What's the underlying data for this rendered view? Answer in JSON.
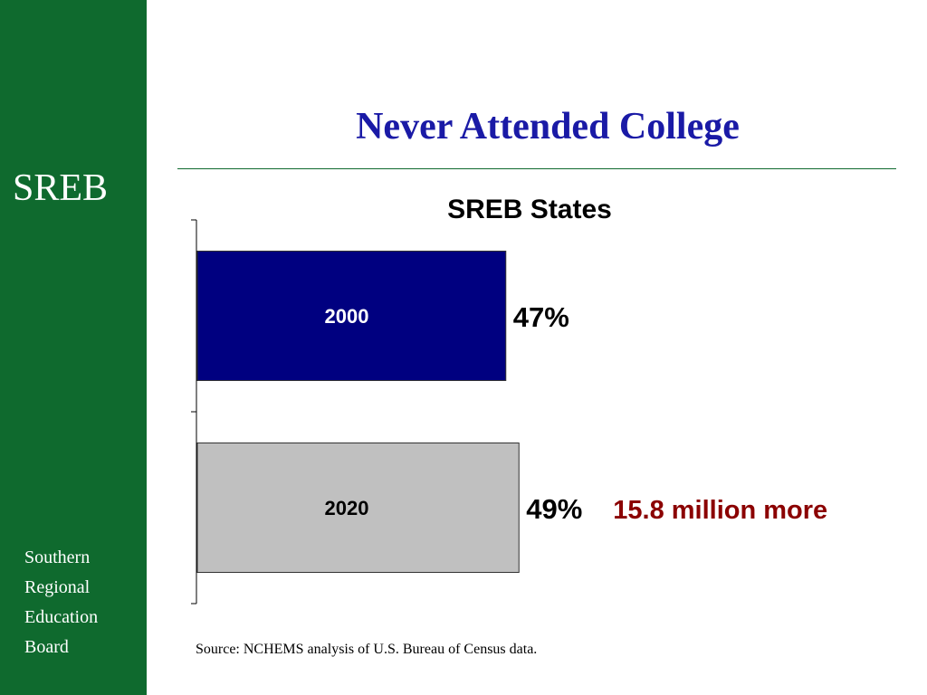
{
  "sidebar": {
    "abbreviation": "SREB",
    "name_lines": [
      "Southern",
      "Regional",
      "Education",
      "Board"
    ]
  },
  "title": "Never Attended College",
  "source": "Source: NCHEMS analysis of U.S. Bureau of Census data.",
  "colors": {
    "sidebar": "#0f6a2e",
    "title": "#1a1aa6",
    "bar_2000": "#000080",
    "bar_2020": "#c0c0c0",
    "annotation": "#8b0000"
  },
  "chart_data": {
    "type": "bar",
    "orientation": "horizontal",
    "title": "SREB States",
    "categories": [
      "2000",
      "2020"
    ],
    "values": [
      47,
      49
    ],
    "value_labels": [
      "47%",
      "49%"
    ],
    "unit": "%",
    "xlabel": "",
    "ylabel": "",
    "xlim": [
      0,
      100
    ],
    "grid": false,
    "legend": "none",
    "annotations": [
      {
        "category": "2020",
        "text": "15.8 million more"
      }
    ]
  }
}
